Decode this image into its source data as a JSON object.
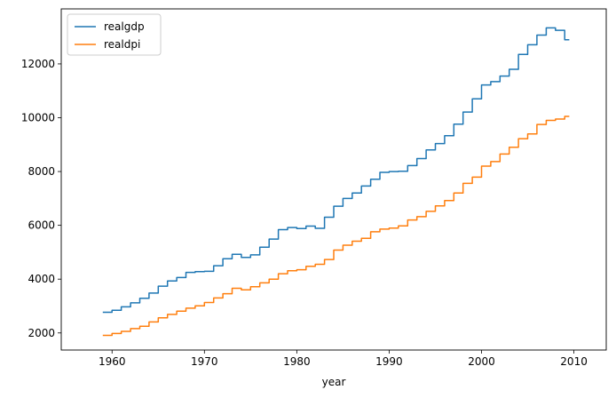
{
  "chart_data": {
    "type": "line",
    "title": "",
    "xlabel": "year",
    "ylabel": "",
    "xlim": [
      1954.5,
      2013.5
    ],
    "ylim": [
      1365,
      14045
    ],
    "xticks": [
      1960,
      1970,
      1980,
      1990,
      2000,
      2010
    ],
    "xtick_labels": [
      "1960",
      "1970",
      "1980",
      "1990",
      "2000",
      "2010"
    ],
    "yticks": [
      2000,
      4000,
      6000,
      8000,
      10000,
      12000
    ],
    "ytick_labels": [
      "2000",
      "4000",
      "6000",
      "8000",
      "10000",
      "12000"
    ],
    "grid": false,
    "legend_position": "upper left",
    "series": [
      {
        "name": "realgdp",
        "color": "#1f77b4",
        "x": [
          1959,
          1960,
          1961,
          1962,
          1963,
          1964,
          1965,
          1966,
          1967,
          1968,
          1969,
          1970,
          1971,
          1972,
          1973,
          1974,
          1975,
          1976,
          1977,
          1978,
          1979,
          1980,
          1981,
          1982,
          1983,
          1984,
          1985,
          1986,
          1987,
          1988,
          1989,
          1990,
          1991,
          1992,
          1993,
          1994,
          1995,
          1996,
          1997,
          1998,
          1999,
          2000,
          2001,
          2002,
          2003,
          2004,
          2005,
          2006,
          2007,
          2008,
          2009
        ],
        "y": [
          2770,
          2840,
          2970,
          3120,
          3290,
          3480,
          3740,
          3930,
          4060,
          4250,
          4280,
          4290,
          4500,
          4760,
          4920,
          4810,
          4900,
          5190,
          5490,
          5840,
          5920,
          5880,
          5970,
          5890,
          6300,
          6710,
          7000,
          7200,
          7460,
          7710,
          7970,
          8000,
          8010,
          8220,
          8480,
          8800,
          9040,
          9330,
          9760,
          10210,
          10700,
          11220,
          11340,
          11550,
          11800,
          12350,
          12710,
          13070,
          13340,
          13250,
          12900
        ]
      },
      {
        "name": "realdpi",
        "color": "#ff7f0e",
        "x": [
          1959,
          1960,
          1961,
          1962,
          1963,
          1964,
          1965,
          1966,
          1967,
          1968,
          1969,
          1970,
          1971,
          1972,
          1973,
          1974,
          1975,
          1976,
          1977,
          1978,
          1979,
          1980,
          1981,
          1982,
          1983,
          1984,
          1985,
          1986,
          1987,
          1988,
          1989,
          1990,
          1991,
          1992,
          1993,
          1994,
          1995,
          1996,
          1997,
          1998,
          1999,
          2000,
          2001,
          2002,
          2003,
          2004,
          2005,
          2006,
          2007,
          2008,
          2009
        ],
        "y": [
          1910,
          1980,
          2060,
          2160,
          2250,
          2410,
          2560,
          2690,
          2810,
          2920,
          3010,
          3130,
          3300,
          3460,
          3660,
          3600,
          3720,
          3860,
          4000,
          4200,
          4310,
          4350,
          4480,
          4550,
          4730,
          5080,
          5260,
          5410,
          5520,
          5760,
          5860,
          5900,
          5980,
          6200,
          6320,
          6520,
          6720,
          6920,
          7200,
          7560,
          7790,
          8200,
          8370,
          8650,
          8900,
          9220,
          9400,
          9750,
          9900,
          9950,
          10050
        ]
      }
    ]
  }
}
